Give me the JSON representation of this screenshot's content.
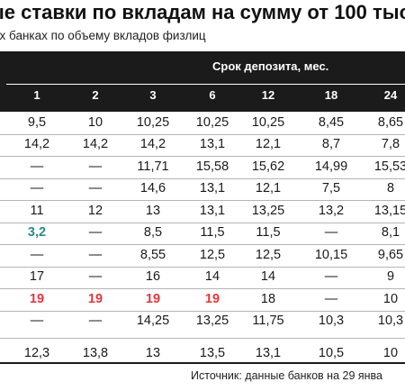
{
  "title": "ые ставки по вкладам на сумму от 100 тыс",
  "subtitle": "их банках по объему вкладов физлиц",
  "header": {
    "group_label": "Срок депозита, мес.",
    "columns": [
      "1",
      "2",
      "3",
      "6",
      "12",
      "18",
      "24"
    ]
  },
  "rows": [
    {
      "cells": [
        {
          "v": "9,5"
        },
        {
          "v": "10"
        },
        {
          "v": "10,25"
        },
        {
          "v": "10,25"
        },
        {
          "v": "10,25"
        },
        {
          "v": "8,45"
        },
        {
          "v": "8,65"
        }
      ]
    },
    {
      "cells": [
        {
          "v": "14,2"
        },
        {
          "v": "14,2"
        },
        {
          "v": "14,2"
        },
        {
          "v": "13,1"
        },
        {
          "v": "12,1"
        },
        {
          "v": "8,7"
        },
        {
          "v": "7,8"
        }
      ]
    },
    {
      "cells": [
        {
          "v": "—"
        },
        {
          "v": "—"
        },
        {
          "v": "11,71"
        },
        {
          "v": "15,58"
        },
        {
          "v": "15,62"
        },
        {
          "v": "14,99"
        },
        {
          "v": "15,53"
        }
      ]
    },
    {
      "cells": [
        {
          "v": "—"
        },
        {
          "v": "—"
        },
        {
          "v": "14,6"
        },
        {
          "v": "13,1"
        },
        {
          "v": "12,1"
        },
        {
          "v": "7,5"
        },
        {
          "v": "8"
        }
      ]
    },
    {
      "cells": [
        {
          "v": "11"
        },
        {
          "v": "12"
        },
        {
          "v": "13"
        },
        {
          "v": "13,1"
        },
        {
          "v": "13,25"
        },
        {
          "v": "13,2"
        },
        {
          "v": "13,15"
        }
      ]
    },
    {
      "cells": [
        {
          "v": "3,2",
          "style": "green"
        },
        {
          "v": "—"
        },
        {
          "v": "8,5"
        },
        {
          "v": "11,5"
        },
        {
          "v": "11,5"
        },
        {
          "v": "—"
        },
        {
          "v": "8,1"
        }
      ]
    },
    {
      "cells": [
        {
          "v": "—"
        },
        {
          "v": "—"
        },
        {
          "v": "8,55"
        },
        {
          "v": "12,5"
        },
        {
          "v": "12,5"
        },
        {
          "v": "10,15"
        },
        {
          "v": "9,65"
        }
      ]
    },
    {
      "cells": [
        {
          "v": "17"
        },
        {
          "v": "—"
        },
        {
          "v": "16"
        },
        {
          "v": "14"
        },
        {
          "v": "14"
        },
        {
          "v": "—"
        },
        {
          "v": "9"
        }
      ]
    },
    {
      "cells": [
        {
          "v": "19",
          "style": "red"
        },
        {
          "v": "19",
          "style": "red"
        },
        {
          "v": "19",
          "style": "red"
        },
        {
          "v": "19",
          "style": "red"
        },
        {
          "v": "18"
        },
        {
          "v": "—"
        },
        {
          "v": "10"
        }
      ]
    },
    {
      "cells": [
        {
          "v": "—"
        },
        {
          "v": "—"
        },
        {
          "v": "14,25"
        },
        {
          "v": "13,25"
        },
        {
          "v": "11,75"
        },
        {
          "v": "10,3"
        },
        {
          "v": "10,3"
        }
      ]
    },
    {
      "cells": [
        {
          "v": "12,3"
        },
        {
          "v": "13,8"
        },
        {
          "v": "13"
        },
        {
          "v": "13,5"
        },
        {
          "v": "13,1"
        },
        {
          "v": "10,5"
        },
        {
          "v": "10"
        }
      ]
    }
  ],
  "source": "Источник: данные банков на 29 янва",
  "colors": {
    "header_bg": "#1b1b1b",
    "green": "#2a8b86",
    "red": "#e4363b"
  }
}
